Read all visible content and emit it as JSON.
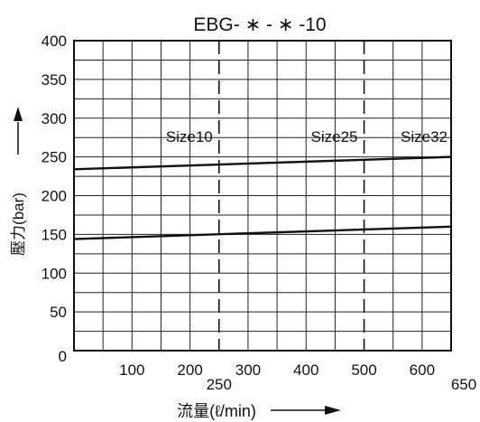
{
  "chart_data": {
    "type": "line",
    "title": "EBG- ∗ - ∗ -10",
    "xlabel": "流量(ℓ/min)",
    "ylabel": "壓力(bar)",
    "xlim": [
      0,
      650
    ],
    "ylim": [
      0,
      400
    ],
    "x_ticks": [
      {
        "value": 100,
        "label": "100"
      },
      {
        "value": 200,
        "label": "200"
      },
      {
        "value": 300,
        "label": "300"
      },
      {
        "value": 400,
        "label": "400"
      },
      {
        "value": 500,
        "label": "500"
      },
      {
        "value": 600,
        "label": "600"
      }
    ],
    "x_ticks_secondary": [
      {
        "value": 250,
        "label": "250"
      },
      {
        "value": 650,
        "label": "650"
      }
    ],
    "y_ticks": [
      {
        "value": 0,
        "label": "0"
      },
      {
        "value": 50,
        "label": "50"
      },
      {
        "value": 100,
        "label": "100"
      },
      {
        "value": 150,
        "label": "150"
      },
      {
        "value": 200,
        "label": "200"
      },
      {
        "value": 250,
        "label": "250"
      },
      {
        "value": 300,
        "label": "300"
      },
      {
        "value": 350,
        "label": "350"
      },
      {
        "value": 400,
        "label": "400"
      }
    ],
    "grid": true,
    "series": [
      {
        "x": [
          0,
          650
        ],
        "y": [
          234,
          250
        ]
      },
      {
        "x": [
          0,
          650
        ],
        "y": [
          144,
          160
        ]
      }
    ],
    "size_limits": [
      {
        "label": "Size10",
        "x": 250
      },
      {
        "label": "Size25",
        "x": 500
      },
      {
        "label": "Size32",
        "x": 650
      }
    ],
    "color": "#111111"
  }
}
